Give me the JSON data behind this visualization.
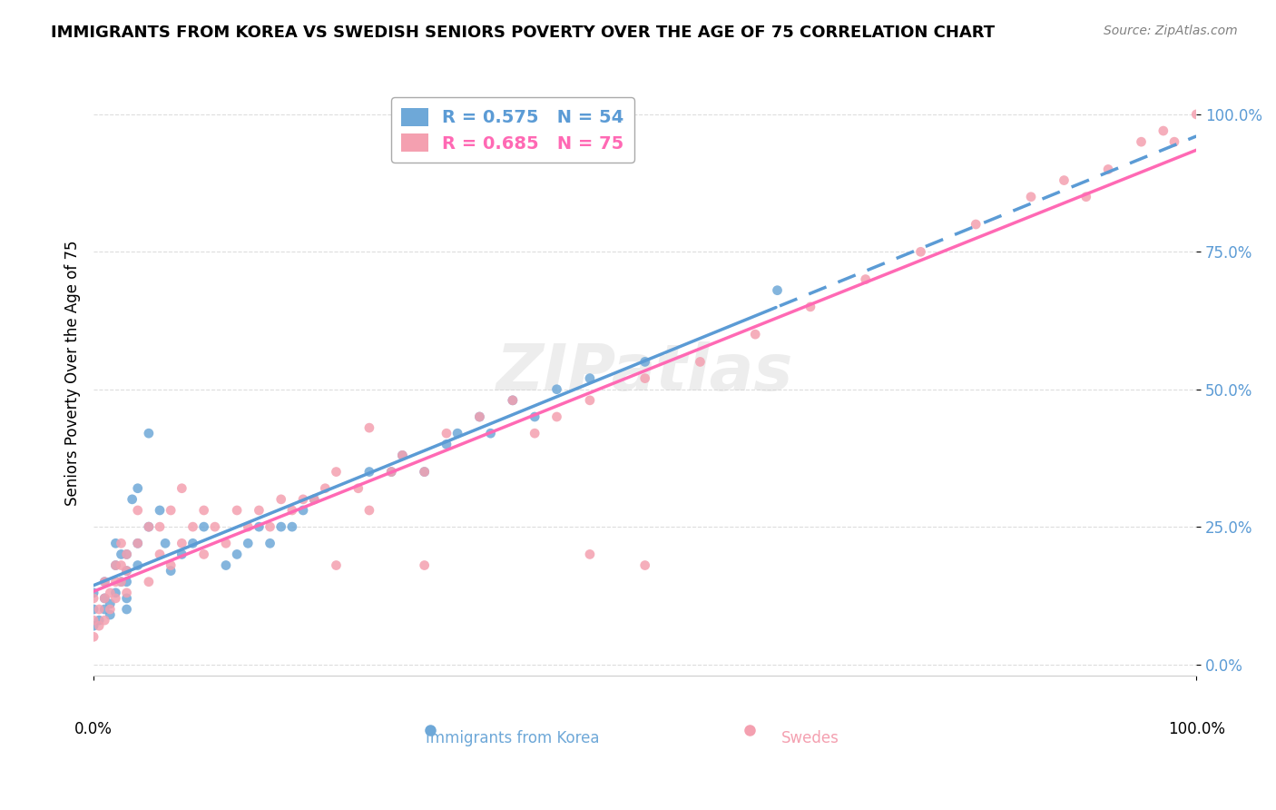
{
  "title": "IMMIGRANTS FROM KOREA VS SWEDISH SENIORS POVERTY OVER THE AGE OF 75 CORRELATION CHART",
  "source": "Source: ZipAtlas.com",
  "ylabel": "Seniors Poverty Over the Age of 75",
  "xlim": [
    0,
    1
  ],
  "ylim": [
    -0.02,
    1.08
  ],
  "ytick_labels": [
    "0.0%",
    "25.0%",
    "50.0%",
    "75.0%",
    "100.0%"
  ],
  "ytick_values": [
    0,
    0.25,
    0.5,
    0.75,
    1.0
  ],
  "legend_blue_r": "R = 0.575",
  "legend_blue_n": "N = 54",
  "legend_pink_r": "R = 0.685",
  "legend_pink_n": "N = 75",
  "blue_color": "#6EA8D8",
  "pink_color": "#F4A0B0",
  "blue_line_color": "#5B9BD5",
  "pink_line_color": "#FF69B4",
  "watermark": "ZIPatlas",
  "blue_scatter_x": [
    0.0,
    0.0,
    0.0,
    0.005,
    0.01,
    0.01,
    0.01,
    0.015,
    0.015,
    0.02,
    0.02,
    0.02,
    0.025,
    0.025,
    0.03,
    0.03,
    0.03,
    0.03,
    0.03,
    0.035,
    0.04,
    0.04,
    0.04,
    0.05,
    0.05,
    0.06,
    0.065,
    0.07,
    0.08,
    0.09,
    0.1,
    0.12,
    0.13,
    0.14,
    0.15,
    0.16,
    0.17,
    0.18,
    0.19,
    0.2,
    0.25,
    0.27,
    0.28,
    0.3,
    0.32,
    0.33,
    0.35,
    0.36,
    0.38,
    0.4,
    0.42,
    0.45,
    0.5,
    0.62
  ],
  "blue_scatter_y": [
    0.07,
    0.1,
    0.13,
    0.08,
    0.1,
    0.12,
    0.15,
    0.09,
    0.11,
    0.13,
    0.18,
    0.22,
    0.15,
    0.2,
    0.1,
    0.12,
    0.15,
    0.17,
    0.2,
    0.3,
    0.18,
    0.22,
    0.32,
    0.42,
    0.25,
    0.28,
    0.22,
    0.17,
    0.2,
    0.22,
    0.25,
    0.18,
    0.2,
    0.22,
    0.25,
    0.22,
    0.25,
    0.25,
    0.28,
    0.3,
    0.35,
    0.35,
    0.38,
    0.35,
    0.4,
    0.42,
    0.45,
    0.42,
    0.48,
    0.45,
    0.5,
    0.52,
    0.55,
    0.68
  ],
  "pink_scatter_x": [
    0.0,
    0.0,
    0.0,
    0.005,
    0.005,
    0.01,
    0.01,
    0.01,
    0.015,
    0.015,
    0.02,
    0.02,
    0.02,
    0.025,
    0.025,
    0.025,
    0.03,
    0.03,
    0.03,
    0.04,
    0.04,
    0.05,
    0.05,
    0.06,
    0.06,
    0.07,
    0.07,
    0.08,
    0.08,
    0.09,
    0.1,
    0.1,
    0.11,
    0.12,
    0.13,
    0.14,
    0.15,
    0.16,
    0.17,
    0.18,
    0.19,
    0.2,
    0.21,
    0.22,
    0.24,
    0.25,
    0.27,
    0.28,
    0.3,
    0.32,
    0.35,
    0.38,
    0.4,
    0.42,
    0.45,
    0.5,
    0.55,
    0.6,
    0.65,
    0.7,
    0.75,
    0.8,
    0.85,
    0.88,
    0.9,
    0.92,
    0.95,
    0.97,
    0.98,
    1.0,
    0.3,
    0.25,
    0.22,
    0.45,
    0.5
  ],
  "pink_scatter_y": [
    0.05,
    0.08,
    0.12,
    0.07,
    0.1,
    0.08,
    0.12,
    0.15,
    0.1,
    0.13,
    0.12,
    0.15,
    0.18,
    0.15,
    0.18,
    0.22,
    0.13,
    0.17,
    0.2,
    0.22,
    0.28,
    0.15,
    0.25,
    0.2,
    0.25,
    0.18,
    0.28,
    0.22,
    0.32,
    0.25,
    0.2,
    0.28,
    0.25,
    0.22,
    0.28,
    0.25,
    0.28,
    0.25,
    0.3,
    0.28,
    0.3,
    0.3,
    0.32,
    0.35,
    0.32,
    0.28,
    0.35,
    0.38,
    0.35,
    0.42,
    0.45,
    0.48,
    0.42,
    0.45,
    0.48,
    0.52,
    0.55,
    0.6,
    0.65,
    0.7,
    0.75,
    0.8,
    0.85,
    0.88,
    0.85,
    0.9,
    0.95,
    0.97,
    0.95,
    1.0,
    0.18,
    0.43,
    0.18,
    0.2,
    0.18
  ]
}
